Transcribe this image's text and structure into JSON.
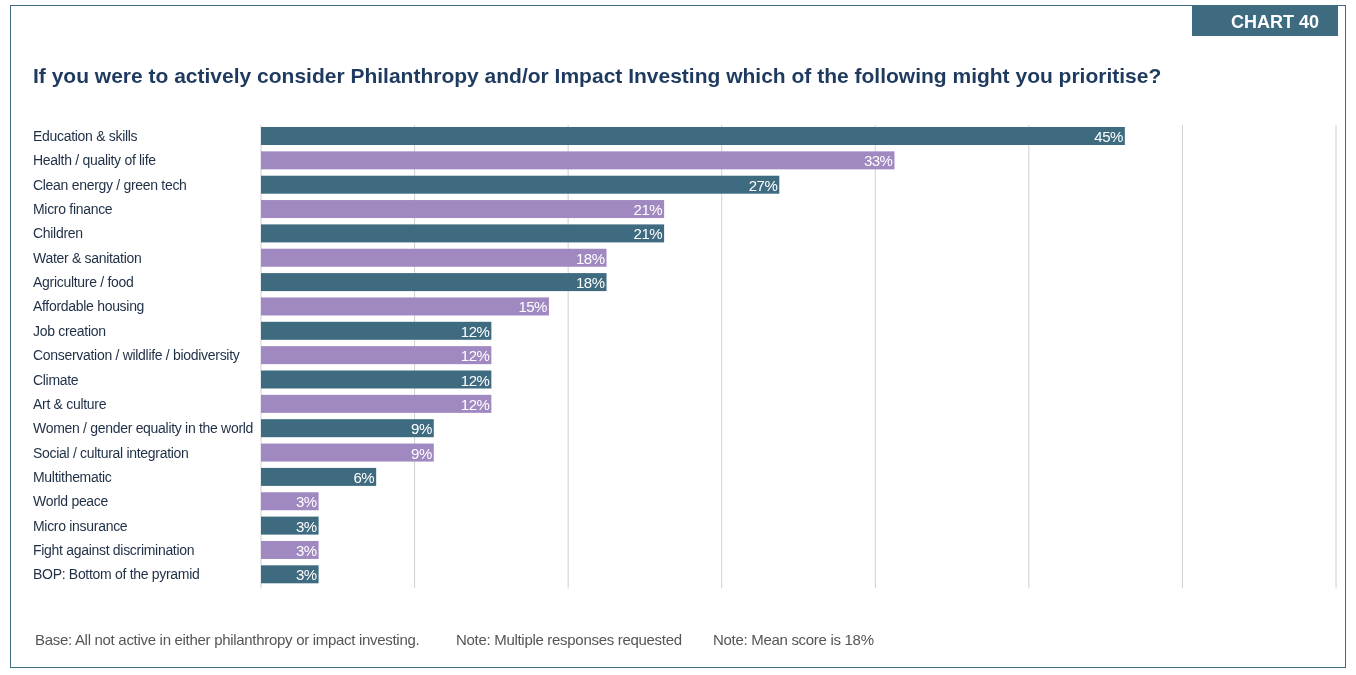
{
  "chart_data": {
    "type": "bar",
    "orientation": "horizontal",
    "title": "If you were to actively consider Philanthropy and/or Impact Investing which of the following might you prioritise?",
    "categories": [
      "Education & skills",
      "Health / quality of life",
      "Clean energy / green tech",
      "Micro finance",
      "Children",
      "Water & sanitation",
      "Agriculture / food",
      "Affordable housing",
      "Job creation",
      "Conservation / wildlife / biodiversity",
      "Climate",
      "Art & culture",
      "Women / gender equality in the world",
      "Social / cultural integration",
      "Multithematic",
      "World peace",
      "Micro insurance",
      "Fight against discrimination",
      "BOP: Bottom of the pyramid"
    ],
    "values": [
      45,
      33,
      27,
      21,
      21,
      18,
      18,
      15,
      12,
      12,
      12,
      12,
      9,
      9,
      6,
      3,
      3,
      3,
      3
    ],
    "value_labels": [
      "45%",
      "33%",
      "27%",
      "21%",
      "21%",
      "18%",
      "18%",
      "15%",
      "12%",
      "12%",
      "12%",
      "12%",
      "9%",
      "9%",
      "6%",
      "3%",
      "3%",
      "3%",
      "3%"
    ],
    "colors": [
      "#3e6b80",
      "#a088c0",
      "#3e6b80",
      "#a088c0",
      "#3e6b80",
      "#a088c0",
      "#3e6b80",
      "#a088c0",
      "#3e6b80",
      "#a088c0",
      "#3e6b80",
      "#a088c0",
      "#3e6b80",
      "#a088c0",
      "#3e6b80",
      "#a088c0",
      "#3e6b80",
      "#a088c0",
      "#3e6b80"
    ],
    "xlim": [
      0,
      56
    ],
    "xticks": [
      {
        "value": 0,
        "label": null
      },
      {
        "value": 8,
        "label": null
      },
      {
        "value": 16,
        "label": null
      },
      {
        "value": 24,
        "label": null
      },
      {
        "value": 32,
        "label": null
      },
      {
        "value": 40,
        "label": null
      },
      {
        "value": 48,
        "label": null
      },
      {
        "value": 56,
        "label": null
      }
    ],
    "grid": "x",
    "annotations": [
      "CHART 40",
      "Base: All not active in either philanthropy or impact investing.",
      "Note: Multiple responses requested",
      "Note: Mean score is 18%"
    ]
  }
}
